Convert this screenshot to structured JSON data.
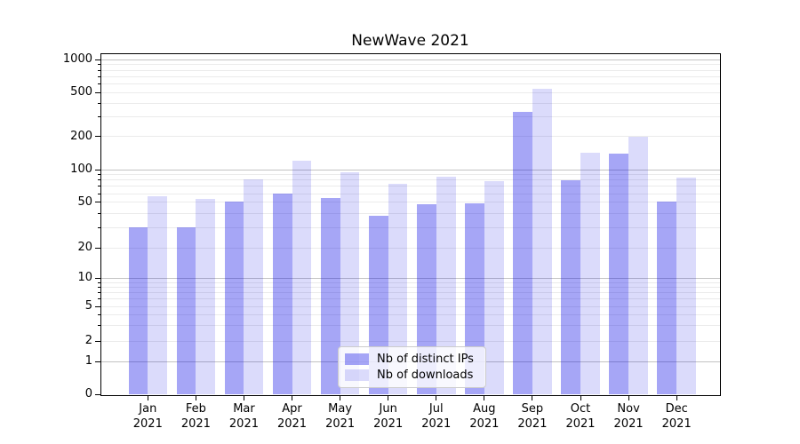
{
  "chart_data": {
    "type": "bar",
    "title": "NewWave 2021",
    "categories": [
      "Jan 2021",
      "Feb 2021",
      "Mar 2021",
      "Apr 2021",
      "May 2021",
      "Jun 2021",
      "Jul 2021",
      "Aug 2021",
      "Sep 2021",
      "Oct 2021",
      "Nov 2021",
      "Dec 2021"
    ],
    "x_tick_months": [
      "Jan",
      "Feb",
      "Mar",
      "Apr",
      "May",
      "Jun",
      "Jul",
      "Aug",
      "Sep",
      "Oct",
      "Nov",
      "Dec"
    ],
    "x_tick_year": "2021",
    "series": [
      {
        "name": "Nb of distinct IPs",
        "color": "rgba(0,0,230,0.35)",
        "values": [
          30,
          30,
          51,
          60,
          55,
          38,
          48,
          49,
          335,
          80,
          140,
          51
        ]
      },
      {
        "name": "Nb of downloads",
        "color": "rgba(0,0,230,0.14)",
        "values": [
          57,
          54,
          82,
          120,
          95,
          74,
          86,
          78,
          540,
          142,
          200,
          84
        ]
      }
    ],
    "xlabel": "",
    "ylabel": "",
    "y_scale": "symlog",
    "ylim": [
      0,
      1150
    ],
    "y_ticks": [
      0,
      1,
      2,
      5,
      10,
      20,
      50,
      100,
      200,
      500,
      1000
    ],
    "y_minor_ticks": [
      3,
      4,
      6,
      7,
      8,
      9,
      30,
      40,
      60,
      70,
      80,
      90,
      300,
      400,
      600,
      700,
      800,
      900
    ],
    "grid": true,
    "legend": {
      "position": "lower center",
      "entries": [
        "Nb of distinct IPs",
        "Nb of downloads"
      ]
    }
  },
  "colors": {
    "major_grid": "#c3c3c3",
    "minor_grid": "#ebebeb",
    "axis": "#000000",
    "background": "#ffffff",
    "bar_distinct_ips": "rgba(0,0,230,0.35)",
    "bar_downloads": "rgba(0,0,230,0.14)"
  }
}
